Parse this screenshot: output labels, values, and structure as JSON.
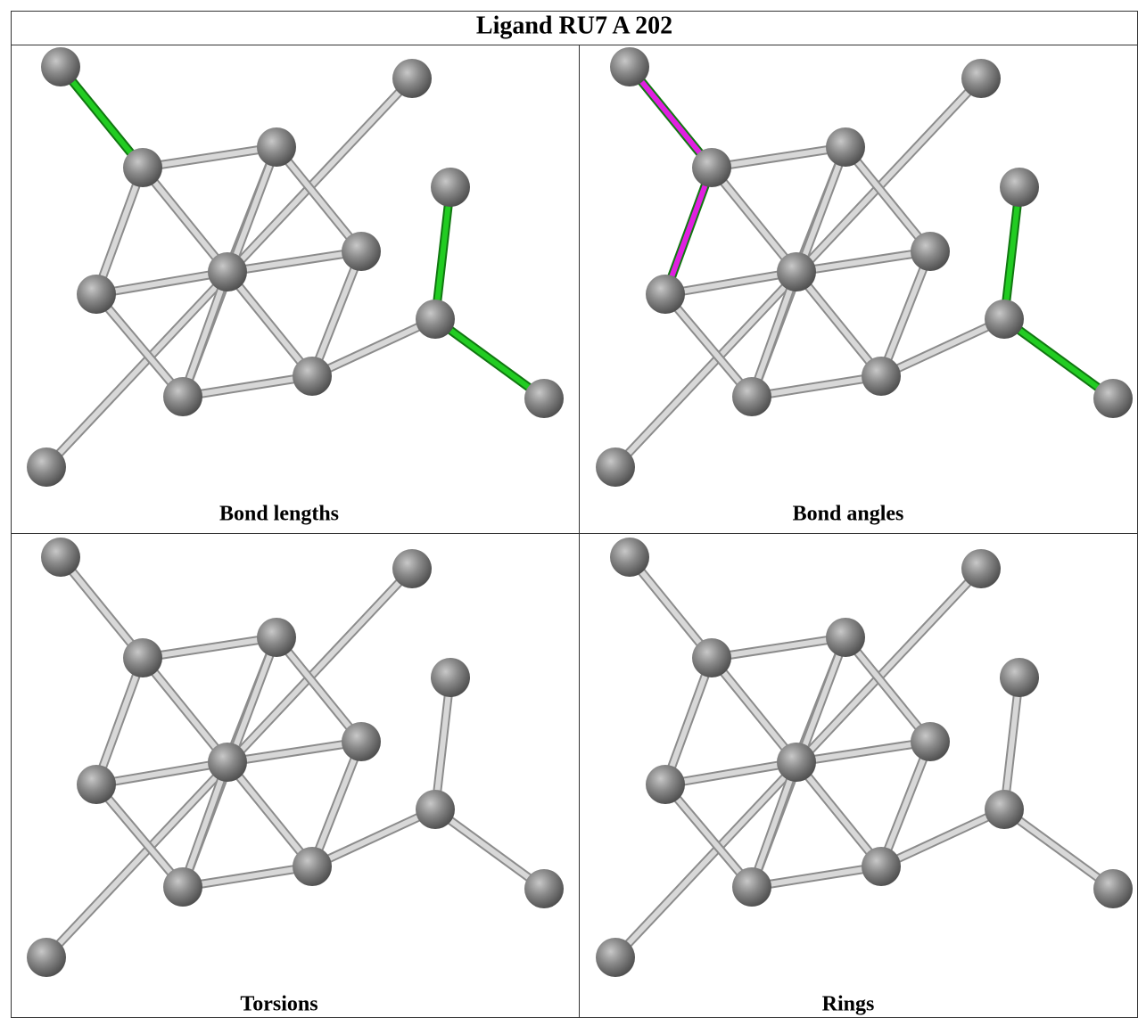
{
  "title": "Ligand RU7 A 202",
  "panels": [
    {
      "caption": "Bond lengths"
    },
    {
      "caption": "Bond angles"
    },
    {
      "caption": "Torsions"
    },
    {
      "caption": "Rings"
    }
  ]
}
